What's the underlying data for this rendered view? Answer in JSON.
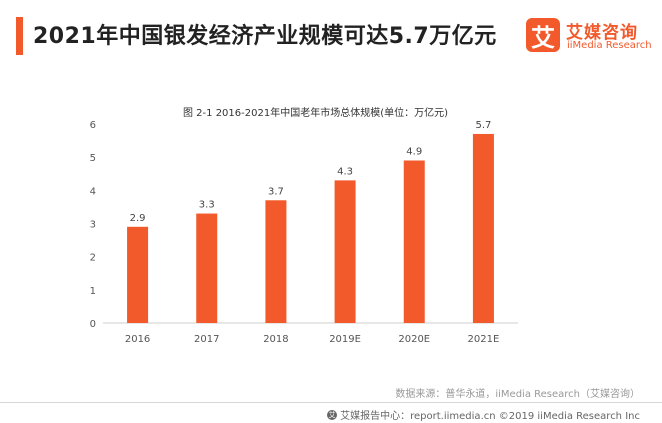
{
  "header": {
    "title": "2021年中国银发经济产业规模可达5.7万亿元",
    "accent_color": "#f2592b"
  },
  "logo": {
    "badge_char": "艾",
    "name_cn": "艾媒咨询",
    "name_en": "iiMedia Research"
  },
  "chart_data": {
    "type": "bar",
    "title": "图 2-1 2016-2021年中国老年市场总体规模(单位：万亿元)",
    "categories": [
      "2016",
      "2017",
      "2018",
      "2019E",
      "2020E",
      "2021E"
    ],
    "values": [
      2.9,
      3.3,
      3.7,
      4.3,
      4.9,
      5.7
    ],
    "value_labels": [
      "2.9",
      "3.3",
      "3.7",
      "4.3",
      "4.9",
      "5.7"
    ],
    "y_ticks": [
      "0",
      "1",
      "2",
      "3",
      "4",
      "5",
      "6"
    ],
    "ylim": [
      0,
      6
    ],
    "xlabel": "",
    "ylabel": "",
    "grid": false,
    "bar_color": "#f2592b"
  },
  "source": "数据来源：普华永道，iiMedia Research（艾媒咨询）",
  "footer": {
    "icon": "copyright-icon",
    "icon_glyph": "艾",
    "text": "艾媒报告中心：report.iimedia.cn  ©2019  iiMedia Research  Inc"
  }
}
